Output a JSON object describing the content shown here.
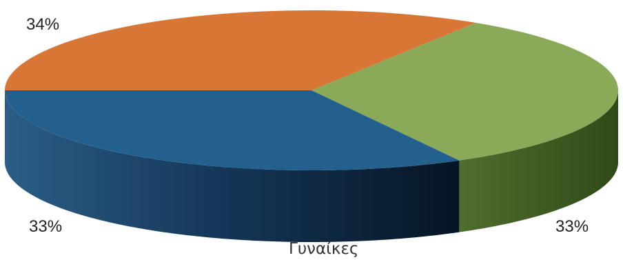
{
  "chart_data": {
    "type": "pie",
    "style": "3d",
    "title": "Γυναίκες",
    "slices": [
      {
        "label": "34%",
        "value": 34,
        "color": "#D87635"
      },
      {
        "label": "33%",
        "value": 33,
        "color": "#8AAA5A"
      },
      {
        "label": "33%",
        "value": 33,
        "color": "#24608E"
      }
    ]
  }
}
